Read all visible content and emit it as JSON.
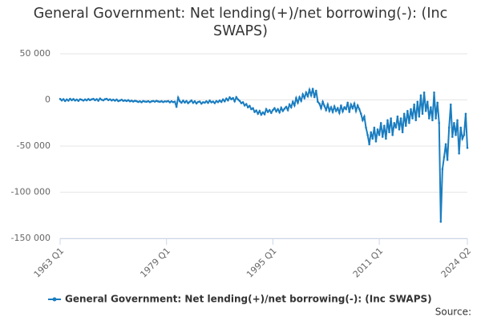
{
  "chart_data": {
    "type": "line",
    "title": "General Government: Net lending(+)/net borrowing(-): (Inc SWAPS)",
    "source": "Source:",
    "categories": [
      "1963 Q1",
      null,
      null,
      null,
      null,
      null,
      null,
      null,
      null,
      null,
      null,
      null,
      null,
      null,
      null,
      null,
      null,
      null,
      null,
      null,
      null,
      null,
      null,
      null,
      null,
      null,
      null,
      null,
      null,
      null,
      null,
      null,
      null,
      null,
      null,
      null,
      null,
      null,
      null,
      null,
      null,
      null,
      null,
      null,
      null,
      null,
      null,
      null,
      null,
      null,
      null,
      null,
      null,
      null,
      null,
      null,
      null,
      null,
      null,
      null,
      null,
      null,
      null,
      null,
      "1979 Q1",
      null,
      null,
      null,
      null,
      null,
      null,
      null,
      null,
      null,
      null,
      null,
      null,
      null,
      null,
      null,
      null,
      null,
      null,
      null,
      null,
      null,
      null,
      null,
      null,
      null,
      null,
      null,
      null,
      null,
      null,
      null,
      null,
      null,
      null,
      null,
      null,
      null,
      null,
      null,
      null,
      null,
      null,
      null,
      null,
      null,
      null,
      null,
      null,
      null,
      null,
      null,
      null,
      null,
      null,
      null,
      null,
      null,
      null,
      null,
      null,
      null,
      null,
      null,
      "1995 Q1",
      null,
      null,
      null,
      null,
      null,
      null,
      null,
      null,
      null,
      null,
      null,
      null,
      null,
      null,
      null,
      null,
      null,
      null,
      null,
      null,
      null,
      null,
      null,
      null,
      null,
      null,
      null,
      null,
      null,
      null,
      null,
      null,
      null,
      null,
      null,
      null,
      null,
      null,
      null,
      null,
      null,
      null,
      null,
      null,
      null,
      null,
      null,
      null,
      null,
      null,
      null,
      null,
      null,
      null,
      null,
      null,
      null,
      null,
      null,
      null,
      null,
      null,
      null,
      "2011 Q1",
      null,
      null,
      null,
      null,
      null,
      null,
      null,
      null,
      null,
      null,
      null,
      null,
      null,
      null,
      null,
      null,
      null,
      null,
      null,
      null,
      null,
      null,
      null,
      null,
      null,
      null,
      null,
      null,
      null,
      null,
      null,
      null,
      null,
      null,
      null,
      null,
      null,
      null,
      null,
      null,
      null,
      null,
      null,
      null,
      null,
      null,
      null,
      null,
      null,
      null,
      null,
      null,
      "2024 Q2"
    ],
    "series": [
      {
        "name": "General Government: Net lending(+)/net borrowing(-): (Inc SWAPS)",
        "color": "#1a7dc0",
        "values": [
          1000,
          -500,
          800,
          -1200,
          500,
          -800,
          1200,
          -300,
          900,
          -600,
          400,
          -1000,
          700,
          200,
          -700,
          500,
          -400,
          900,
          -200,
          600,
          1100,
          -300,
          800,
          -900,
          1500,
          200,
          -400,
          800,
          1200,
          -200,
          600,
          -500,
          300,
          -800,
          400,
          -1300,
          -600,
          200,
          -1000,
          -400,
          -1200,
          -300,
          -1500,
          -800,
          -1800,
          -900,
          -1400,
          -2200,
          -1500,
          -2500,
          -1200,
          -1800,
          -2000,
          -1300,
          -2400,
          -1600,
          -1200,
          -1900,
          -1000,
          -1700,
          -2100,
          -1400,
          -2300,
          -1600,
          -1800,
          -1200,
          -2600,
          -1500,
          -2400,
          -1900,
          -7500,
          2500,
          -1500,
          -3000,
          -800,
          -2800,
          -1200,
          -3500,
          -2000,
          -600,
          -3200,
          -1500,
          -3800,
          -2200,
          -1800,
          -4000,
          -2500,
          -3000,
          -1500,
          -3200,
          -700,
          -2600,
          -1800,
          -3500,
          -1200,
          -2400,
          -600,
          -2200,
          500,
          -1500,
          1500,
          -500,
          2800,
          800,
          2000,
          -1500,
          3000,
          500,
          -1000,
          -3500,
          -2500,
          -6000,
          -4500,
          -8000,
          -6500,
          -10000,
          -9000,
          -13000,
          -11500,
          -15000,
          -12000,
          -16000,
          -13500,
          -15500,
          -10000,
          -13000,
          -11000,
          -14000,
          -11000,
          -9000,
          -12500,
          -10000,
          -13500,
          -8500,
          -12000,
          -9500,
          -7500,
          -11000,
          -5000,
          -8000,
          -2000,
          -6000,
          2000,
          -3000,
          3000,
          -1000,
          6000,
          2000,
          8000,
          4000,
          11000,
          5000,
          12000,
          3000,
          10000,
          -2000,
          -4000,
          -9000,
          -2000,
          -6500,
          -11000,
          -5000,
          -12000,
          -8000,
          -13000,
          -7000,
          -12000,
          -9000,
          -14000,
          -6000,
          -12500,
          -8000,
          -10000,
          -3000,
          -13000,
          -5000,
          -9000,
          -4000,
          -12000,
          -6000,
          -10000,
          -15000,
          -22000,
          -18000,
          -30000,
          -38000,
          -48000,
          -35000,
          -42000,
          -30000,
          -45000,
          -32000,
          -38000,
          -25000,
          -40000,
          -28000,
          -42000,
          -22000,
          -35000,
          -20000,
          -38000,
          -25000,
          -30000,
          -18000,
          -32000,
          -20000,
          -35000,
          -15000,
          -28000,
          -12000,
          -25000,
          -10000,
          -20000,
          -5000,
          -22000,
          -2000,
          -18000,
          5000,
          -15000,
          8000,
          -12000,
          -2000,
          -20000,
          -8000,
          -22000,
          8000,
          -20000,
          -3000,
          -25000,
          -132000,
          -75000,
          -62000,
          -48000,
          -65000,
          -30000,
          -5000,
          -40000,
          -25000,
          -38000,
          -22000,
          -58000,
          -30000,
          -42000,
          -38000,
          -15000,
          -52000
        ]
      }
    ],
    "ylim": [
      -150000,
      50000
    ],
    "yticks": [
      {
        "value": -150000,
        "label": "-150 000"
      },
      {
        "value": -100000,
        "label": "-100 000"
      },
      {
        "value": -50000,
        "label": "-50 000"
      },
      0,
      {
        "value": 50000,
        "label": "50 000"
      }
    ],
    "grid": true
  }
}
